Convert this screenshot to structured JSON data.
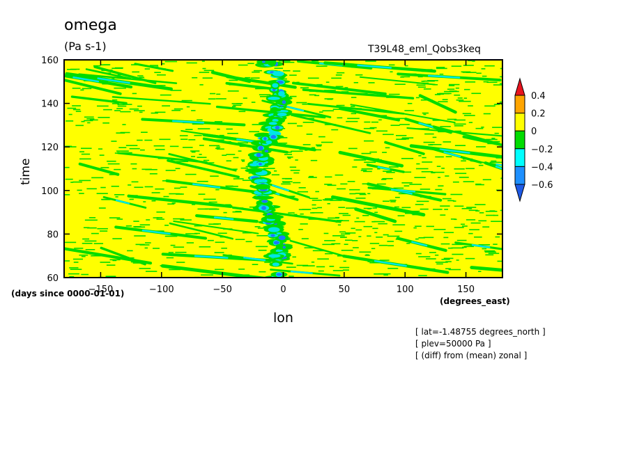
{
  "header": {
    "variable": "omega",
    "units": "(Pa s-1)",
    "run": "T39L48_eml_Qobs3keq"
  },
  "notes": [
    "[ lat=-1.48755 degrees_north ]",
    "[ plev=50000 Pa ]",
    "[ (diff) from (mean) zonal ]"
  ],
  "chart_data": {
    "type": "heatmap",
    "xlabel": "lon",
    "ylabel": "time",
    "x_units": "(degrees_east)",
    "time_units": "(days since 0000-01-01)",
    "xlim": [
      -180,
      180
    ],
    "ylim": [
      60,
      160
    ],
    "x_ticks": [
      -150,
      -100,
      -50,
      0,
      50,
      100,
      150
    ],
    "y_ticks": [
      60,
      80,
      100,
      120,
      140,
      160
    ],
    "colorbar": {
      "labels": [
        "0.4",
        "0.2",
        "0",
        "-0.2",
        "-0.4",
        "-0.6"
      ],
      "levels": [
        0.4,
        0.2,
        0,
        -0.2,
        -0.4,
        -0.6
      ],
      "colors": [
        "#e8141e",
        "#ffa500",
        "#ffff00",
        "#00dc00",
        "#00ffff",
        "#1e90ff",
        "#1e5ae6"
      ]
    },
    "description_colors": {
      "background": "#ffff00",
      "weak_negative": "#00dc00",
      "moderate_negative": "#00e6e6",
      "strong_negative": "#1e78ff"
    }
  }
}
